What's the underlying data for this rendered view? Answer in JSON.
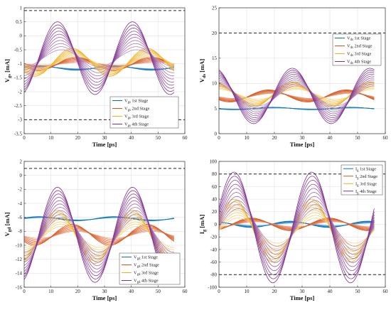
{
  "chart_data": [
    {
      "type": "line",
      "xlabel": "Time [ps]",
      "ylabel_main": "V",
      "ylabel_sub": "gs",
      "ylabel_unit": " [mA]",
      "xlim": [
        0,
        60
      ],
      "ylim": [
        -3.5,
        1
      ],
      "xticks": [
        0,
        10,
        20,
        30,
        40,
        50,
        60
      ],
      "yticks": [
        -3.5,
        -3,
        -2.5,
        -2,
        -1.5,
        -1,
        -0.5,
        0,
        0.5,
        1
      ],
      "grid": true,
      "legend_position": "bottom-right",
      "reference_lines": [
        0.9,
        -3.0
      ],
      "period_ps": 28,
      "x_range_data": [
        0,
        56
      ],
      "series": [
        {
          "name_main": "V",
          "name_sub": "gs",
          "name_suffix": " 1st Stage",
          "color": "#0072BD",
          "offset": -1.15,
          "amp_min": 0.03,
          "amp_max": 0.08,
          "phase_deg": 0,
          "curves": 6
        },
        {
          "name_main": "V",
          "name_sub": "gs",
          "name_suffix": " 2nd Stage",
          "color": "#D95319",
          "offset": -1.0,
          "amp_min": 0.05,
          "amp_max": 0.25,
          "phase_deg": 180,
          "curves": 8
        },
        {
          "name_main": "V",
          "name_sub": "gs",
          "name_suffix": " 3rd Stage",
          "color": "#EDB120",
          "offset": -0.95,
          "amp_min": 0.2,
          "amp_max": 0.5,
          "phase_deg": 200,
          "curves": 8
        },
        {
          "name_main": "V",
          "name_sub": "gs",
          "name_suffix": " 4th Stage",
          "color": "#7E2F8E",
          "offset": -0.8,
          "amp_min": 0.3,
          "amp_max": 1.3,
          "phase_deg": 270,
          "curves": 10
        }
      ]
    },
    {
      "type": "line",
      "xlabel": "Time [ps]",
      "ylabel_main": "V",
      "ylabel_sub": "ds",
      "ylabel_unit": " [mA]",
      "xlim": [
        0,
        60
      ],
      "ylim": [
        0,
        25
      ],
      "xticks": [
        0,
        10,
        20,
        30,
        40,
        50,
        60
      ],
      "yticks": [
        0,
        5,
        10,
        15,
        20,
        25
      ],
      "grid": true,
      "legend_position": "middle-right",
      "reference_lines": [
        20
      ],
      "period_ps": 28,
      "x_range_data": [
        0,
        56
      ],
      "series": [
        {
          "name_main": "V",
          "name_sub": "ds",
          "name_suffix": " 1st Stage",
          "color": "#0072BD",
          "offset": 5.0,
          "amp_min": 0.1,
          "amp_max": 0.25,
          "phase_deg": 180,
          "curves": 6
        },
        {
          "name_main": "V",
          "name_sub": "ds",
          "name_suffix": " 2nd Stage",
          "color": "#D95319",
          "offset": 7.5,
          "amp_min": 0.5,
          "amp_max": 1.2,
          "phase_deg": 200,
          "curves": 8
        },
        {
          "name_main": "V",
          "name_sub": "ds",
          "name_suffix": " 3rd Stage",
          "color": "#EDB120",
          "offset": 7.8,
          "amp_min": 1.0,
          "amp_max": 2.5,
          "phase_deg": 90,
          "curves": 8
        },
        {
          "name_main": "V",
          "name_sub": "ds",
          "name_suffix": " 4th Stage",
          "color": "#7E2F8E",
          "offset": 7.5,
          "amp_min": 2.0,
          "amp_max": 5.5,
          "phase_deg": 90,
          "curves": 10
        }
      ]
    },
    {
      "type": "line",
      "xlabel": "Time [ps]",
      "ylabel_main": "V",
      "ylabel_sub": "gd",
      "ylabel_unit": " [mA]",
      "xlim": [
        0,
        60
      ],
      "ylim": [
        -16,
        2
      ],
      "xticks": [
        0,
        10,
        20,
        30,
        40,
        50,
        60
      ],
      "yticks": [
        -16,
        -14,
        -12,
        -10,
        -8,
        -6,
        -4,
        -2,
        0,
        2
      ],
      "grid": true,
      "legend_position": "bottom-right",
      "reference_lines": [
        1.0
      ],
      "period_ps": 28,
      "x_range_data": [
        0,
        56
      ],
      "series": [
        {
          "name_main": "V",
          "name_sub": "gd",
          "name_suffix": " 1st Stage",
          "color": "#0072BD",
          "offset": -6.2,
          "amp_min": 0.15,
          "amp_max": 0.3,
          "phase_deg": 0,
          "curves": 6
        },
        {
          "name_main": "V",
          "name_sub": "gd",
          "name_suffix": " 2nd Stage",
          "color": "#D95319",
          "offset": -8.5,
          "amp_min": 0.5,
          "amp_max": 1.5,
          "phase_deg": 200,
          "curves": 8
        },
        {
          "name_main": "V",
          "name_sub": "gd",
          "name_suffix": " 3rd Stage",
          "color": "#EDB120",
          "offset": -8.8,
          "amp_min": 1.5,
          "amp_max": 3.8,
          "phase_deg": 270,
          "curves": 8
        },
        {
          "name_main": "V",
          "name_sub": "gd",
          "name_suffix": " 4th Stage",
          "color": "#7E2F8E",
          "offset": -8.5,
          "amp_min": 2.5,
          "amp_max": 6.8,
          "phase_deg": 270,
          "curves": 10
        }
      ]
    },
    {
      "type": "line",
      "xlabel": "Time [ps]",
      "ylabel_main": "I",
      "ylabel_sub": "g",
      "ylabel_unit": " [mA]",
      "xlim": [
        0,
        60
      ],
      "ylim": [
        -100,
        100
      ],
      "xticks": [
        0,
        10,
        20,
        30,
        40,
        50,
        60
      ],
      "yticks": [
        -100,
        -80,
        -60,
        -40,
        -20,
        0,
        20,
        40,
        60,
        80,
        100
      ],
      "grid": true,
      "legend_position": "top-right",
      "reference_lines": [
        80,
        -80
      ],
      "period_ps": 28,
      "x_range_data": [
        0,
        56
      ],
      "series": [
        {
          "name_main": "I",
          "name_sub": "g",
          "name_suffix": " 1st Stage",
          "color": "#0072BD",
          "offset": 0,
          "amp_min": 2,
          "amp_max": 5,
          "phase_deg": 100,
          "curves": 6
        },
        {
          "name_main": "I",
          "name_sub": "g",
          "name_suffix": " 2nd Stage",
          "color": "#D95319",
          "offset": 0,
          "amp_min": 4,
          "amp_max": 10,
          "phase_deg": 280,
          "curves": 8
        },
        {
          "name_main": "I",
          "name_sub": "g",
          "name_suffix": " 3rd Stage",
          "color": "#EDB120",
          "offset": -10,
          "amp_min": 20,
          "amp_max": 50,
          "phase_deg": 0,
          "curves": 8
        },
        {
          "name_main": "I",
          "name_sub": "g",
          "name_suffix": " 4th Stage",
          "color": "#7E2F8E",
          "offset": -5,
          "amp_min": 30,
          "amp_max": 88,
          "phase_deg": 0,
          "curves": 10
        }
      ]
    }
  ]
}
